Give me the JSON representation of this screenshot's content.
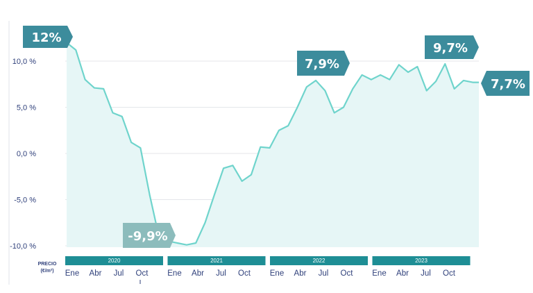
{
  "chart_data": {
    "type": "area",
    "y_axis": {
      "unit_label_line1": "PRECIO",
      "unit_label_line2": "(€/m²)",
      "ticks": [
        "10,0 %",
        "5,0 %",
        "0,0 %",
        "-5,0 %",
        "-10,0 %"
      ],
      "tick_values": [
        10,
        5,
        0,
        -5,
        -10
      ],
      "ylim": [
        -10.5,
        12
      ]
    },
    "years": [
      "2020",
      "2021",
      "2022",
      "2023"
    ],
    "month_ticks": [
      "Ene",
      "Abr",
      "Jul",
      "Oct"
    ],
    "x_start": "2020-01",
    "series": [
      {
        "values": [
          12.0,
          11.2,
          8.0,
          7.1,
          7.0,
          4.4,
          4.0,
          1.2,
          0.6,
          -4.5,
          -9.0,
          -9.5,
          -9.7,
          -9.9,
          -9.7,
          -7.5,
          -4.5,
          -1.6,
          -1.3,
          -3.0,
          -2.3,
          0.7,
          0.6,
          2.5,
          3.0,
          5.0,
          7.2,
          7.9,
          6.8,
          4.4,
          5.0,
          7.0,
          8.5,
          8.0,
          8.5,
          8.0,
          9.6,
          8.8,
          9.4,
          6.8,
          7.8,
          9.7,
          7.0,
          7.9,
          7.7
        ]
      }
    ],
    "callouts": [
      {
        "label": "12%",
        "index": 0,
        "value": 12.0
      },
      {
        "label": "-9,9%",
        "index": 13,
        "value": -9.9
      },
      {
        "label": "7,9%",
        "index": 27,
        "value": 7.9
      },
      {
        "label": "9,7%",
        "index": 41,
        "value": 9.7
      },
      {
        "label": "7,7%",
        "index": 44,
        "value": 7.7
      }
    ],
    "colors": {
      "line": "#6fd4cc",
      "fill": "#e6f6f6",
      "year_bar": "#1e8e95",
      "callout": "#3c8c9c",
      "callout_min": "#8cbcbc",
      "grid": "#e4e6ea",
      "axis_text": "#2e3f7a"
    }
  }
}
